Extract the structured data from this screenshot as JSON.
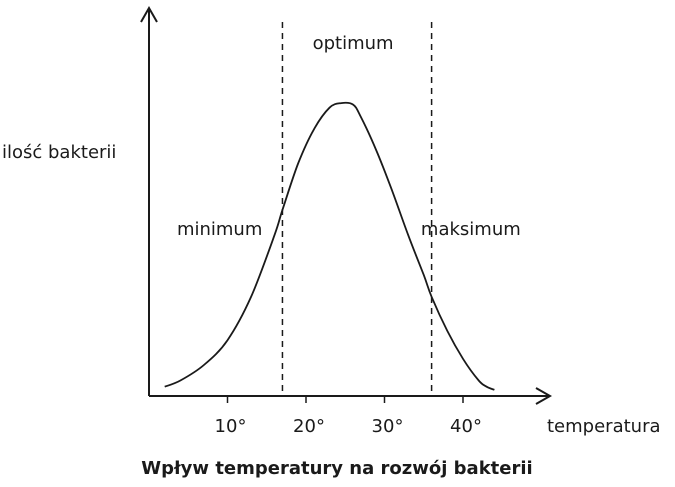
{
  "chart_data": {
    "type": "line",
    "title": "Wpływ temperatury na rozwój bakterii",
    "xlabel": "temperatura",
    "ylabel": "ilość bakterii",
    "x_ticks": [
      10,
      20,
      30,
      40
    ],
    "x_tick_labels": [
      "10°",
      "20°",
      "30°",
      "40°"
    ],
    "xlim": [
      0,
      45
    ],
    "ylim": [
      0,
      100
    ],
    "grid": false,
    "y_ticks_shown": false,
    "series": [
      {
        "x": [
          2,
          4,
          7,
          10,
          13,
          16,
          17,
          19,
          21,
          23,
          24.5,
          26,
          27,
          29,
          31,
          33,
          35,
          36,
          38,
          40,
          42,
          43,
          44
        ],
        "y": [
          3,
          5,
          10,
          18,
          32,
          52,
          60,
          75,
          86,
          93,
          94.5,
          94,
          90,
          79,
          66,
          52,
          39,
          32,
          21,
          12,
          5,
          3,
          2
        ]
      }
    ],
    "reference_lines": [
      {
        "axis": "x",
        "value": 17,
        "style": "dashed"
      },
      {
        "axis": "x",
        "value": 36,
        "style": "dashed"
      }
    ],
    "annotations": [
      {
        "text": "minimum",
        "x": 9,
        "y": 52
      },
      {
        "text": "optimum",
        "x": 26,
        "y": 112
      },
      {
        "text": "maksimum",
        "x": 41,
        "y": 52
      }
    ]
  }
}
